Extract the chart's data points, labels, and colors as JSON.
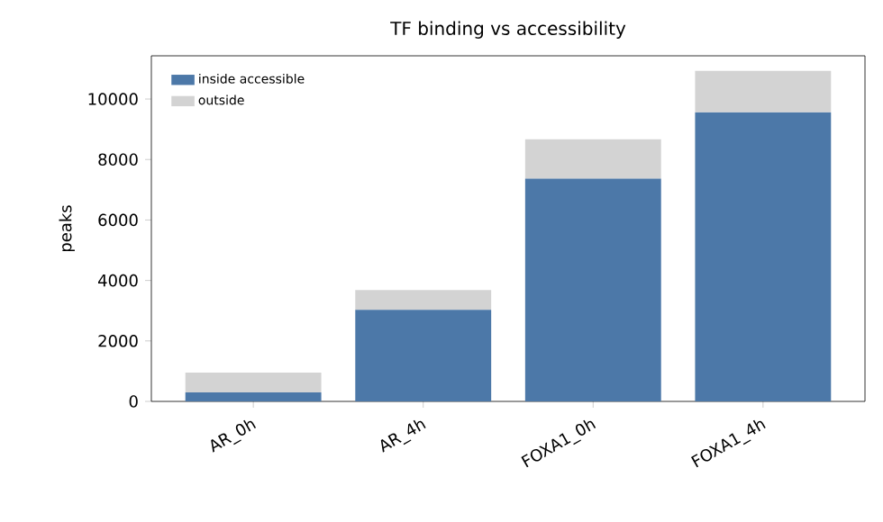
{
  "chart_data": {
    "type": "bar",
    "title": "TF binding vs accessibility",
    "ylabel": "peaks",
    "categories": [
      "AR_0h",
      "AR_4h",
      "FOXA1_0h",
      "FOXA1_4h"
    ],
    "stacked": true,
    "series": [
      {
        "name": "inside accessible",
        "color": "#4c78a8",
        "values": [
          300,
          3030,
          7370,
          9560
        ]
      },
      {
        "name": "outside",
        "color": "#d3d3d3",
        "values": [
          650,
          650,
          1300,
          1370
        ]
      }
    ],
    "ylim": [
      0,
      11430
    ],
    "yticks": [
      0,
      2000,
      4000,
      6000,
      8000,
      10000
    ],
    "legend": "top left",
    "grid": false
  }
}
